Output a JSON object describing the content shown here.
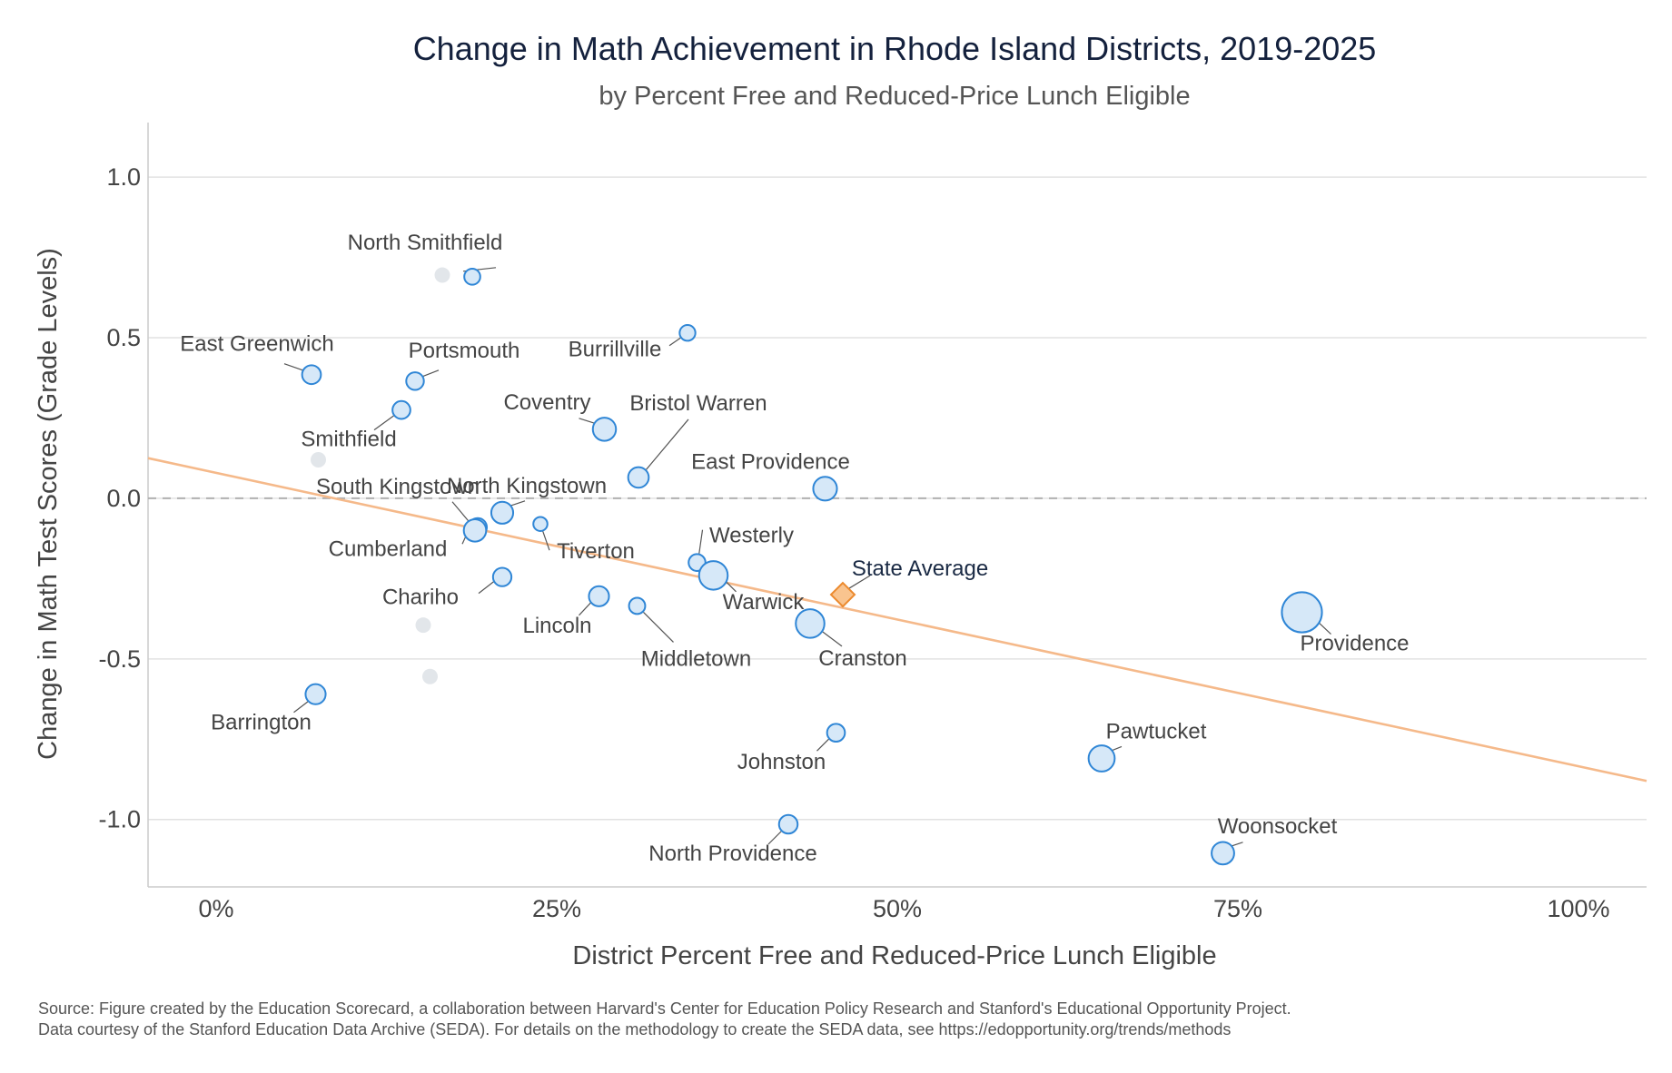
{
  "chart_data": {
    "type": "scatter",
    "title": "Change in Math Achievement in Rhode Island Districts, 2019-2025",
    "subtitle": "by Percent Free and Reduced-Price Lunch Eligible",
    "xlabel": "District Percent Free and Reduced-Price Lunch Eligible",
    "ylabel": "Change in Math Test Scores (Grade Levels)",
    "xlim": [
      -0.05,
      1.05
    ],
    "ylim": [
      -1.21,
      1.17
    ],
    "x_ticks": [
      {
        "value": 0.0,
        "label": "0%"
      },
      {
        "value": 0.25,
        "label": "25%"
      },
      {
        "value": 0.5,
        "label": "50%"
      },
      {
        "value": 0.75,
        "label": "75%"
      },
      {
        "value": 1.0,
        "label": "100%"
      }
    ],
    "y_ticks": [
      {
        "value": 1.0,
        "label": "1.0"
      },
      {
        "value": 0.5,
        "label": "0.5"
      },
      {
        "value": 0.0,
        "label": "0.0"
      },
      {
        "value": -0.5,
        "label": "-0.5"
      },
      {
        "value": -1.0,
        "label": "-1.0"
      }
    ],
    "grid": true,
    "trend_line": {
      "x0": -0.05,
      "y0": 0.125,
      "x1": 1.05,
      "y1": -0.88,
      "color": "#f5b98a"
    },
    "zero_reference": {
      "y": 0.0,
      "style": "dashed",
      "color": "#b0b0b0"
    },
    "colors": {
      "district_fill": "#d6e8f8",
      "district_stroke": "#2f86d6",
      "unlabeled_fill": "#e2e6ea",
      "state_fill": "#f9c48f",
      "state_stroke": "#ec8a2e",
      "leader": "#555555"
    },
    "districts": [
      {
        "name": "North Smithfield",
        "x": 0.188,
        "y": 0.69,
        "size": 3400
      },
      {
        "name": "Burrillville",
        "x": 0.346,
        "y": 0.515,
        "size": 3300
      },
      {
        "name": "East Greenwich",
        "x": 0.07,
        "y": 0.385,
        "size": 4800
      },
      {
        "name": "Portsmouth",
        "x": 0.146,
        "y": 0.365,
        "size": 4200
      },
      {
        "name": "Smithfield",
        "x": 0.136,
        "y": 0.275,
        "size": 4300
      },
      {
        "name": "Coventry",
        "x": 0.285,
        "y": 0.215,
        "size": 7400
      },
      {
        "name": "Bristol Warren",
        "x": 0.31,
        "y": 0.065,
        "size": 5800
      },
      {
        "name": "East Providence",
        "x": 0.447,
        "y": 0.03,
        "size": 7800
      },
      {
        "name": "North Kingstown",
        "x": 0.21,
        "y": -0.045,
        "size": 6600
      },
      {
        "name": "South Kingstown",
        "x": 0.192,
        "y": -0.09,
        "size": 4500
      },
      {
        "name": "Cumberland",
        "x": 0.19,
        "y": -0.1,
        "size": 6900
      },
      {
        "name": "Tiverton",
        "x": 0.238,
        "y": -0.08,
        "size": 2600
      },
      {
        "name": "Westerly",
        "x": 0.353,
        "y": -0.2,
        "size": 3800
      },
      {
        "name": "Warwick",
        "x": 0.365,
        "y": -0.24,
        "size": 11500
      },
      {
        "name": "Chariho",
        "x": 0.21,
        "y": -0.245,
        "size": 4600
      },
      {
        "name": "Lincoln",
        "x": 0.281,
        "y": -0.305,
        "size": 5500
      },
      {
        "name": "Middletown",
        "x": 0.309,
        "y": -0.335,
        "size": 3500
      },
      {
        "name": "Cranston",
        "x": 0.436,
        "y": -0.39,
        "size": 11500
      },
      {
        "name": "Providence",
        "x": 0.797,
        "y": -0.355,
        "size": 23000
      },
      {
        "name": "Barrington",
        "x": 0.073,
        "y": -0.61,
        "size": 5500
      },
      {
        "name": "Johnston",
        "x": 0.455,
        "y": -0.73,
        "size": 4300
      },
      {
        "name": "Pawtucket",
        "x": 0.65,
        "y": -0.81,
        "size": 9500
      },
      {
        "name": "North Providence",
        "x": 0.42,
        "y": -1.015,
        "size": 4700
      },
      {
        "name": "Woonsocket",
        "x": 0.739,
        "y": -1.105,
        "size": 7000
      }
    ],
    "unlabeled_points": [
      {
        "x": 0.166,
        "y": 0.695
      },
      {
        "x": 0.075,
        "y": 0.12
      },
      {
        "x": 0.152,
        "y": -0.395
      },
      {
        "x": 0.157,
        "y": -0.555
      }
    ],
    "state_average": {
      "label": "State Average",
      "x": 0.46,
      "y": -0.3
    }
  },
  "source": {
    "line1": "Source: Figure created by the Education Scorecard, a collaboration between Harvard's Center for Education Policy Research and Stanford's Educational Opportunity Project.",
    "line2": "Data courtesy of the Stanford Education Data Archive (SEDA). For details on the methodology to create the SEDA data, see https://edopportunity.org/trends/methods"
  }
}
